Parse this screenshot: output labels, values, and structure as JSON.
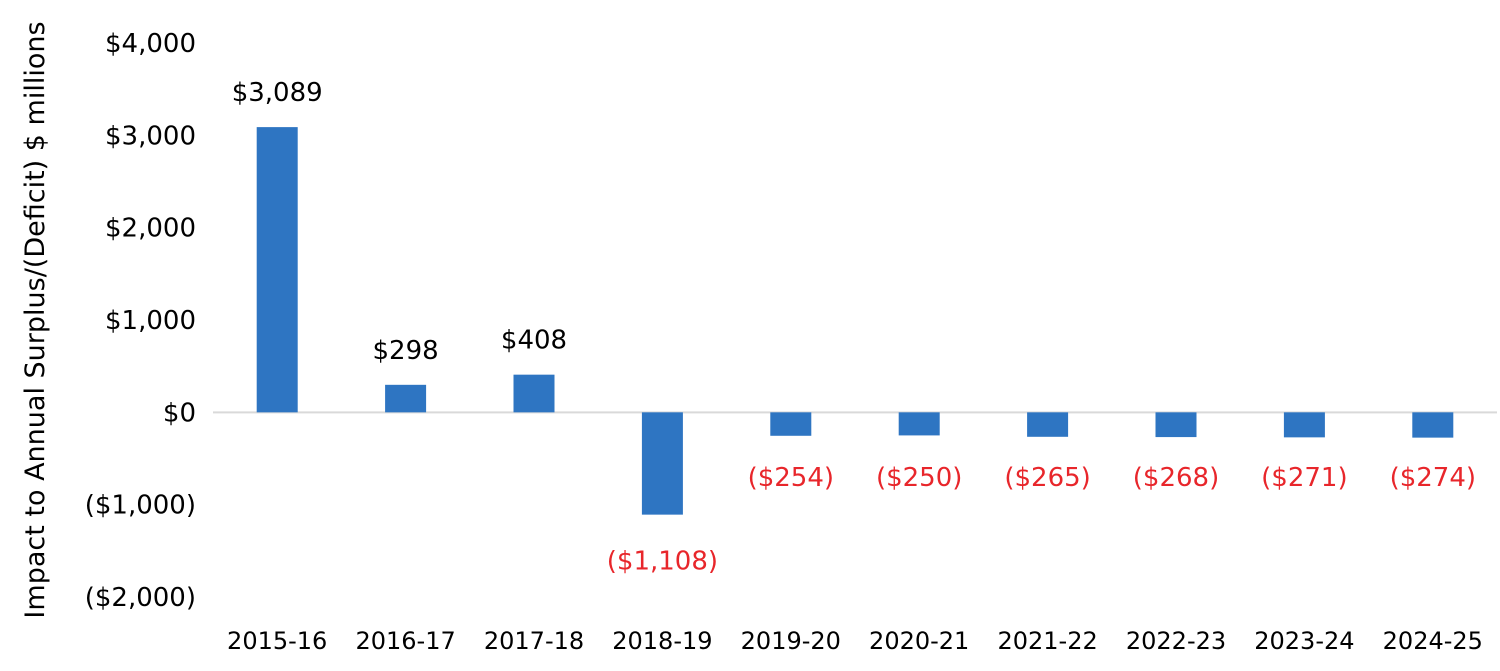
{
  "chart_data": {
    "type": "bar",
    "ylabel": "Impact to Annual Surplus/(Deficit) $ millions",
    "xlabel": "",
    "title": "",
    "categories": [
      "2015-16",
      "2016-17",
      "2017-18",
      "2018-19",
      "2019-20",
      "2020-21",
      "2021-22",
      "2022-23",
      "2023-24",
      "2024-25"
    ],
    "values": [
      3089,
      298,
      408,
      -1108,
      -254,
      -250,
      -265,
      -268,
      -271,
      -274
    ],
    "data_labels": [
      "$3,089",
      "$298",
      "$408",
      "($1,108)",
      "($254)",
      "($250)",
      "($265)",
      "($268)",
      "($271)",
      "($274)"
    ],
    "ylim": [
      -2000,
      4000
    ],
    "yticks": [
      4000,
      3000,
      2000,
      1000,
      0,
      -1000,
      -2000
    ],
    "ytick_labels": [
      "$4,000",
      "$3,000",
      "$2,000",
      "$1,000",
      "$0",
      "($1,000)",
      "($2,000)"
    ],
    "grid": false,
    "legend": "none",
    "colors": {
      "bar": "#2E75C2",
      "negative_label": "#E8262B",
      "positive_label": "#000000",
      "zero_line": "#D9D9D9"
    }
  }
}
